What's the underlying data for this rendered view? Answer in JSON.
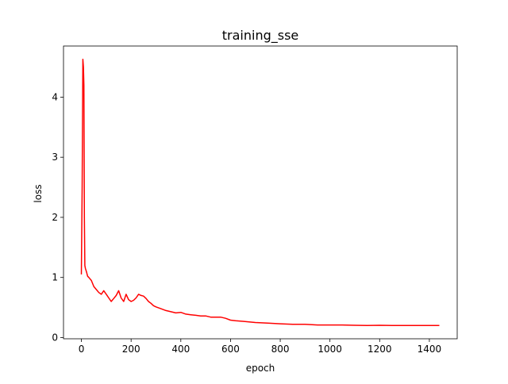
{
  "chart_data": {
    "type": "line",
    "title": "training_sse",
    "xlabel": "epoch",
    "ylabel": "loss",
    "xlim": [
      -72,
      1512
    ],
    "ylim": [
      -0.02,
      4.85
    ],
    "xticks": [
      0,
      200,
      400,
      600,
      800,
      1000,
      1200,
      1400
    ],
    "yticks": [
      0,
      1,
      2,
      3,
      4
    ],
    "grid": false,
    "legend": "none",
    "series": [
      {
        "color": "#ff0000",
        "x": [
          0,
          3,
          6,
          8,
          10,
          12,
          14,
          16,
          20,
          25,
          30,
          40,
          50,
          60,
          70,
          80,
          90,
          100,
          110,
          120,
          130,
          140,
          150,
          160,
          170,
          180,
          190,
          200,
          210,
          220,
          230,
          240,
          250,
          260,
          270,
          280,
          290,
          300,
          320,
          340,
          360,
          380,
          400,
          420,
          440,
          460,
          480,
          500,
          520,
          540,
          560,
          580,
          600,
          620,
          650,
          700,
          750,
          800,
          850,
          900,
          950,
          1000,
          1050,
          1100,
          1150,
          1200,
          1250,
          1300,
          1350,
          1400,
          1440
        ],
        "y": [
          1.05,
          2.5,
          4.63,
          4.5,
          4.2,
          2.0,
          1.2,
          1.15,
          1.1,
          1.02,
          1.0,
          0.95,
          0.85,
          0.8,
          0.75,
          0.72,
          0.78,
          0.72,
          0.66,
          0.6,
          0.65,
          0.7,
          0.78,
          0.66,
          0.6,
          0.72,
          0.63,
          0.6,
          0.62,
          0.66,
          0.72,
          0.7,
          0.69,
          0.65,
          0.6,
          0.57,
          0.53,
          0.51,
          0.48,
          0.45,
          0.43,
          0.41,
          0.42,
          0.39,
          0.38,
          0.37,
          0.36,
          0.36,
          0.34,
          0.34,
          0.34,
          0.32,
          0.29,
          0.28,
          0.27,
          0.25,
          0.24,
          0.23,
          0.22,
          0.22,
          0.21,
          0.21,
          0.21,
          0.205,
          0.2,
          0.205,
          0.2,
          0.2,
          0.2,
          0.2,
          0.2
        ]
      }
    ]
  }
}
